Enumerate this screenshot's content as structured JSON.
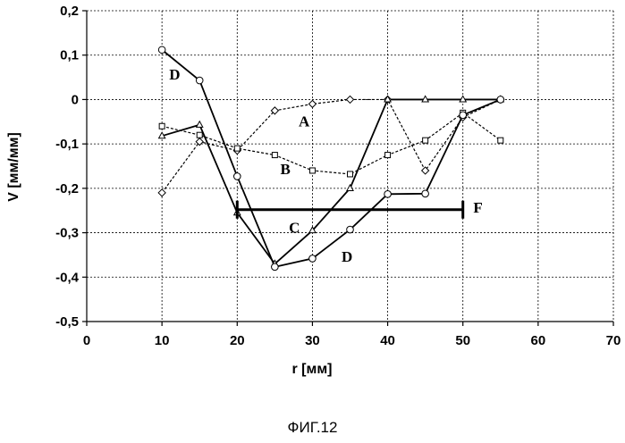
{
  "caption": "ФИГ.12",
  "chart_data": {
    "type": "line",
    "title": "",
    "xlabel": "r [мм]",
    "ylabel": "V [мм/мм]",
    "xlim": [
      0,
      70
    ],
    "ylim": [
      -0.5,
      0.2
    ],
    "xticks": [
      "0",
      "10",
      "20",
      "30",
      "40",
      "50",
      "60",
      "70"
    ],
    "yticks": [
      "0,2",
      "0,1",
      "0",
      "-0,1",
      "-0,2",
      "-0,3",
      "-0,4",
      "-0,5"
    ],
    "grid": "dashed",
    "series": [
      {
        "name": "A",
        "marker": "diamond",
        "line": "dashed",
        "x": [
          10,
          15,
          20,
          25,
          30,
          35,
          40,
          45,
          50,
          55
        ],
        "y": [
          -0.21,
          -0.095,
          -0.115,
          -0.025,
          -0.01,
          0.0,
          0.0,
          -0.16,
          -0.04,
          0.0
        ]
      },
      {
        "name": "B",
        "marker": "square",
        "line": "dashed",
        "x": [
          10,
          15,
          20,
          25,
          30,
          35,
          40,
          45,
          50,
          55
        ],
        "y": [
          -0.06,
          -0.08,
          -0.11,
          -0.125,
          -0.16,
          -0.168,
          -0.125,
          -0.092,
          -0.03,
          -0.092
        ]
      },
      {
        "name": "C",
        "marker": "triangle",
        "line": "solid",
        "x": [
          10,
          15,
          20,
          25,
          30,
          35,
          40,
          45,
          50,
          55
        ],
        "y": [
          -0.082,
          -0.057,
          -0.255,
          -0.37,
          -0.295,
          -0.2,
          0.0,
          0.0,
          0.0,
          0.0
        ]
      },
      {
        "name": "D",
        "marker": "circle",
        "line": "solid",
        "x": [
          10,
          15,
          20,
          25,
          30,
          35,
          40,
          45,
          50,
          55
        ],
        "y": [
          0.112,
          0.043,
          -0.173,
          -0.377,
          -0.358,
          -0.293,
          -0.213,
          -0.212,
          -0.035,
          0.0
        ]
      },
      {
        "name": "F",
        "marker": "bar-ends",
        "line": "solid",
        "x": [
          20,
          50
        ],
        "y": [
          -0.248,
          -0.248
        ]
      }
    ],
    "annotations": [
      {
        "text": "D",
        "x": 11.7,
        "y": 0.045
      },
      {
        "text": "A",
        "x": 28.9,
        "y": -0.06
      },
      {
        "text": "B",
        "x": 26.4,
        "y": -0.168
      },
      {
        "text": "C",
        "x": 27.6,
        "y": -0.3
      },
      {
        "text": "D",
        "x": 34.6,
        "y": -0.365
      },
      {
        "text": "F",
        "x": 52,
        "y": -0.255
      }
    ]
  }
}
